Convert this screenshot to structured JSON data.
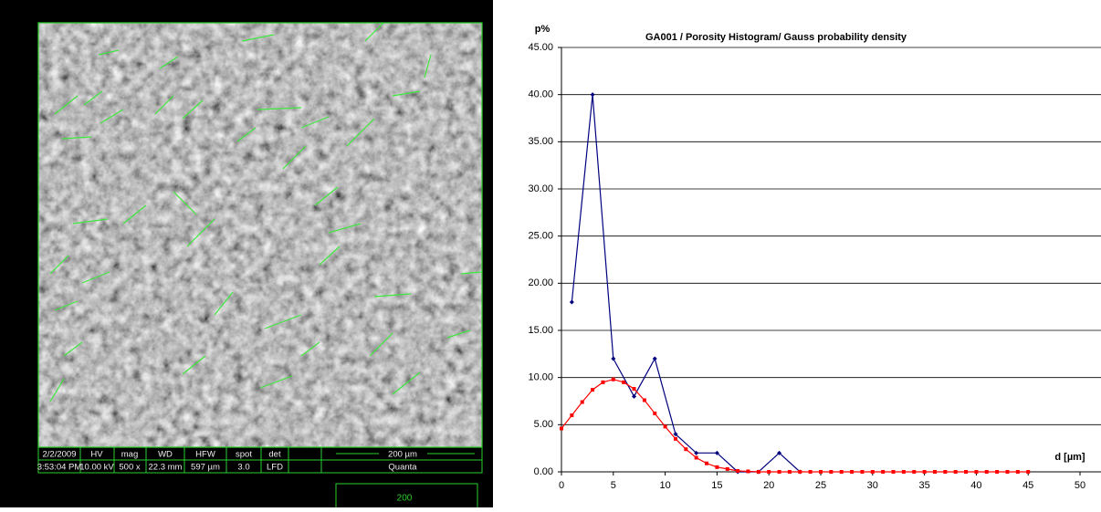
{
  "sem_info": {
    "cells": [
      "2/2/2009",
      "HV",
      "mag",
      "WD",
      "HFW",
      "spot",
      "det",
      "3:53:04 PM",
      "10.00 kV",
      "500 x",
      "22.3 mm",
      "597 µm",
      "3.0",
      "LFD"
    ],
    "scale_bar": "200 µm",
    "instrument": "Quanta",
    "footer": "200"
  },
  "chart_data": {
    "type": "line",
    "title": "GA001 / Porosity Histogram/ Gauss probability density",
    "y_label": "p%",
    "x_label": "d [µm]",
    "xlim": [
      0,
      50
    ],
    "xticks": [
      0,
      5,
      10,
      15,
      20,
      25,
      30,
      35,
      40,
      45,
      50
    ],
    "ylim": [
      0,
      45
    ],
    "yticks": [
      {
        "value": 0,
        "label": "0.00"
      },
      {
        "value": 5,
        "label": "5.00"
      },
      {
        "value": 10,
        "label": "10.00"
      },
      {
        "value": 15,
        "label": "15.00"
      },
      {
        "value": 20,
        "label": "20.00"
      },
      {
        "value": 25,
        "label": "25.00"
      },
      {
        "value": 30,
        "label": "30.00"
      },
      {
        "value": 35,
        "label": "35.00"
      },
      {
        "value": 40,
        "label": "40.00"
      },
      {
        "value": 45,
        "label": "45.00"
      }
    ],
    "grid": true,
    "series": [
      {
        "color": "#00007f",
        "marker": "diamond",
        "x": [
          1,
          3,
          5,
          7,
          9,
          11,
          13,
          15,
          17,
          19,
          21,
          23
        ],
        "values": [
          18,
          40,
          12,
          8,
          12,
          4,
          2,
          2,
          0,
          0,
          2,
          0
        ]
      },
      {
        "color": "#ff0000",
        "marker": "square",
        "x": [
          0,
          1,
          2,
          3,
          4,
          5,
          6,
          7,
          8,
          9,
          10,
          11,
          12,
          13,
          14,
          15,
          16,
          17,
          18,
          19,
          20,
          21,
          22,
          23,
          24,
          25,
          26,
          27,
          28,
          29,
          30,
          31,
          32,
          33,
          34,
          35,
          36,
          37,
          38,
          39,
          40,
          41,
          42,
          43,
          44,
          45
        ],
        "values": [
          4.6,
          6.0,
          7.4,
          8.7,
          9.5,
          9.8,
          9.5,
          8.8,
          7.6,
          6.2,
          4.8,
          3.5,
          2.4,
          1.5,
          0.9,
          0.5,
          0.3,
          0.1,
          0.05,
          0,
          0,
          0,
          0,
          0,
          0,
          0,
          0,
          0,
          0,
          0,
          0,
          0,
          0,
          0,
          0,
          0,
          0,
          0,
          0,
          0,
          0,
          0,
          0,
          0,
          0,
          0
        ]
      }
    ]
  }
}
